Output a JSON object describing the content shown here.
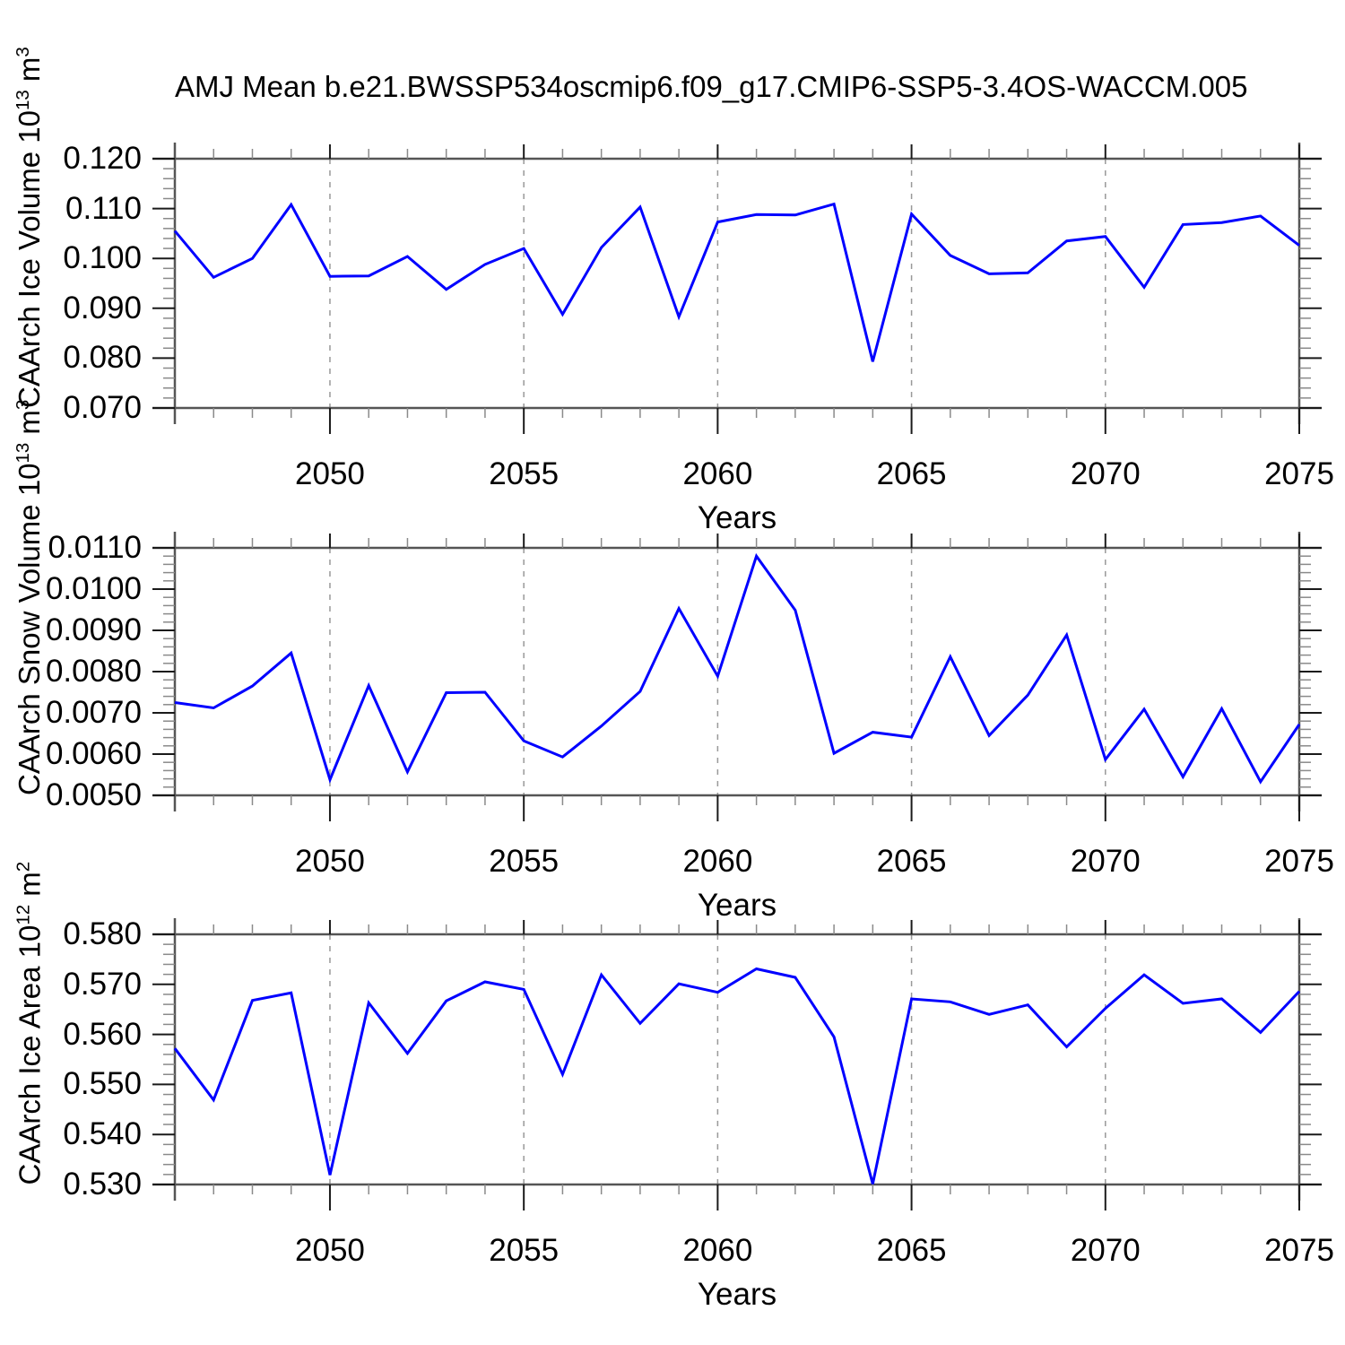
{
  "title": "AMJ Mean b.e21.BWSSP534oscmip6.f09_g17.CMIP6-SSP5-3.4OS-WACCM.005",
  "colors": {
    "line": "#0000ff",
    "axis": "#555555",
    "tick_major": "#1a1a1a",
    "tick_minor": "#8a8a8a",
    "grid": "#999999",
    "text": "#000000"
  },
  "chart_data": [
    {
      "type": "line",
      "ylabel": "CAArch Ice Volume 10^13 m^3",
      "ylabel_parts": [
        {
          "t": "CAArch Ice Volume 10"
        },
        {
          "t": "13",
          "sup": true
        },
        {
          "t": " m"
        },
        {
          "t": "3",
          "sup": true
        }
      ],
      "xlabel": "Years",
      "xlim": [
        2046,
        2075
      ],
      "ylim": [
        0.07,
        0.12
      ],
      "x": [
        2046,
        2047,
        2048,
        2049,
        2050,
        2051,
        2052,
        2053,
        2054,
        2055,
        2056,
        2057,
        2058,
        2059,
        2060,
        2061,
        2062,
        2063,
        2064,
        2065,
        2066,
        2067,
        2068,
        2069,
        2070,
        2071,
        2072,
        2073,
        2074,
        2075
      ],
      "series": [
        {
          "name": "CAArch Ice Volume",
          "values": [
            0.1055,
            0.0962,
            0.1,
            0.1108,
            0.0964,
            0.0965,
            0.1004,
            0.0938,
            0.0988,
            0.102,
            0.0888,
            0.1022,
            0.1103,
            0.0883,
            0.1073,
            0.1088,
            0.1087,
            0.1109,
            0.0793,
            0.1089,
            0.1006,
            0.0969,
            0.0971,
            0.1035,
            0.1044,
            0.0942,
            0.1068,
            0.1072,
            0.1085,
            0.1026
          ]
        }
      ],
      "yticks": [
        0.07,
        0.08,
        0.09,
        0.1,
        0.11,
        0.12
      ],
      "ytick_labels": [
        "0.070",
        "0.080",
        "0.090",
        "0.100",
        "0.110",
        "0.120"
      ],
      "yminor_step": 0.002,
      "xticks": [
        2050,
        2055,
        2060,
        2065,
        2070,
        2075
      ],
      "xtick_labels": [
        "2050",
        "2055",
        "2060",
        "2065",
        "2070",
        "2075"
      ],
      "xminor_step": 1,
      "grid_years": [
        2050,
        2055,
        2060,
        2065,
        2070
      ],
      "grid_style": "vertical-dashed",
      "legend": "none"
    },
    {
      "type": "line",
      "ylabel": "CAArch Snow Volume 10^13 m^3",
      "ylabel_parts": [
        {
          "t": "CAArch Snow Volume 10"
        },
        {
          "t": "13",
          "sup": true
        },
        {
          "t": " m"
        },
        {
          "t": "3",
          "sup": true
        }
      ],
      "xlabel": "Years",
      "xlim": [
        2046,
        2075
      ],
      "ylim": [
        0.005,
        0.011
      ],
      "x": [
        2046,
        2047,
        2048,
        2049,
        2050,
        2051,
        2052,
        2053,
        2054,
        2055,
        2056,
        2057,
        2058,
        2059,
        2060,
        2061,
        2062,
        2063,
        2064,
        2065,
        2066,
        2067,
        2068,
        2069,
        2070,
        2071,
        2072,
        2073,
        2074,
        2075
      ],
      "series": [
        {
          "name": "CAArch Snow Volume",
          "values": [
            0.00725,
            0.00712,
            0.00765,
            0.00845,
            0.00538,
            0.00766,
            0.00557,
            0.00749,
            0.0075,
            0.00632,
            0.00593,
            0.00668,
            0.00752,
            0.00953,
            0.00789,
            0.0108,
            0.00949,
            0.00602,
            0.00653,
            0.00641,
            0.00836,
            0.00645,
            0.00743,
            0.00889,
            0.00587,
            0.00709,
            0.00545,
            0.0071,
            0.00533,
            0.00672
          ]
        }
      ],
      "yticks": [
        0.005,
        0.006,
        0.007,
        0.008,
        0.009,
        0.01,
        0.011
      ],
      "ytick_labels": [
        "0.0050",
        "0.0060",
        "0.0070",
        "0.0080",
        "0.0090",
        "0.0100",
        "0.0110"
      ],
      "yminor_step": 0.0002,
      "xticks": [
        2050,
        2055,
        2060,
        2065,
        2070,
        2075
      ],
      "xtick_labels": [
        "2050",
        "2055",
        "2060",
        "2065",
        "2070",
        "2075"
      ],
      "xminor_step": 1,
      "grid_years": [
        2050,
        2055,
        2060,
        2065,
        2070
      ],
      "grid_style": "vertical-dashed",
      "legend": "none"
    },
    {
      "type": "line",
      "ylabel": "CAArch Ice Area 10^12 m^2",
      "ylabel_parts": [
        {
          "t": "CAArch Ice Area 10"
        },
        {
          "t": "12",
          "sup": true
        },
        {
          "t": " m"
        },
        {
          "t": "2",
          "sup": true
        }
      ],
      "xlabel": "Years",
      "xlim": [
        2046,
        2075
      ],
      "ylim": [
        0.53,
        0.58
      ],
      "x": [
        2046,
        2047,
        2048,
        2049,
        2050,
        2051,
        2052,
        2053,
        2054,
        2055,
        2056,
        2057,
        2058,
        2059,
        2060,
        2061,
        2062,
        2063,
        2064,
        2065,
        2066,
        2067,
        2068,
        2069,
        2070,
        2071,
        2072,
        2073,
        2074,
        2075
      ],
      "series": [
        {
          "name": "CAArch Ice Area",
          "values": [
            0.5572,
            0.5469,
            0.5668,
            0.5683,
            0.5319,
            0.5663,
            0.5562,
            0.5667,
            0.5705,
            0.569,
            0.552,
            0.5719,
            0.5622,
            0.5701,
            0.5684,
            0.5731,
            0.5714,
            0.5595,
            0.5301,
            0.5671,
            0.5665,
            0.564,
            0.5659,
            0.5575,
            0.5652,
            0.5719,
            0.5662,
            0.5671,
            0.5604,
            0.5686
          ]
        }
      ],
      "yticks": [
        0.53,
        0.54,
        0.55,
        0.56,
        0.57,
        0.58
      ],
      "ytick_labels": [
        "0.530",
        "0.540",
        "0.550",
        "0.560",
        "0.570",
        "0.580"
      ],
      "yminor_step": 0.002,
      "xticks": [
        2050,
        2055,
        2060,
        2065,
        2070,
        2075
      ],
      "xtick_labels": [
        "2050",
        "2055",
        "2060",
        "2065",
        "2070",
        "2075"
      ],
      "xminor_step": 1,
      "grid_years": [
        2050,
        2055,
        2060,
        2065,
        2070
      ],
      "grid_style": "vertical-dashed",
      "legend": "none"
    }
  ]
}
